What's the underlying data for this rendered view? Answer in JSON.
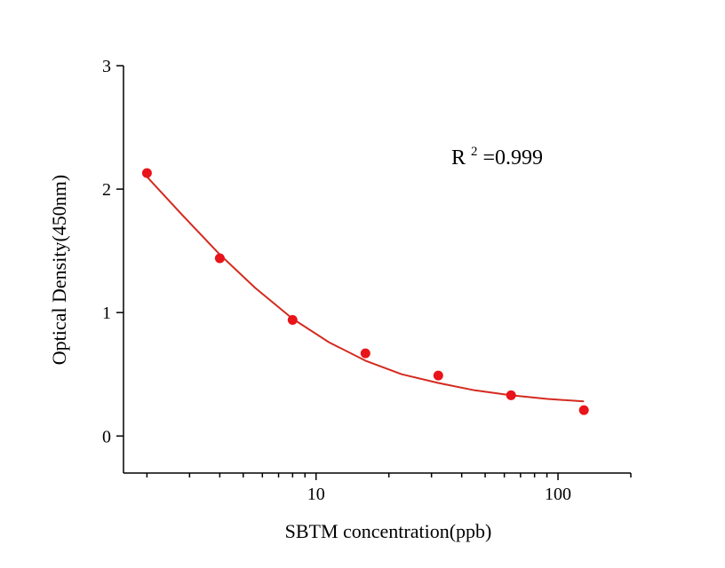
{
  "chart_data": {
    "type": "scatter",
    "xlabel": "SBTM concentration(ppb)",
    "ylabel": "Optical Density(450nm)",
    "xscale": "log",
    "xlim": [
      1.6,
      200
    ],
    "ylim": [
      -0.3,
      3
    ],
    "xticks": [
      10,
      100
    ],
    "yticks": [
      0,
      1,
      2,
      3
    ],
    "annotation": {
      "base": "R",
      "sup": "2",
      "text": "=0.999"
    },
    "grid": false,
    "colors": {
      "points": "#e8141a",
      "fit": "#d42a1f"
    },
    "series": [
      {
        "type": "scatter",
        "x": [
          2,
          4,
          8,
          16,
          32,
          64,
          128
        ],
        "y": [
          2.13,
          1.44,
          0.94,
          0.67,
          0.49,
          0.33,
          0.21
        ]
      },
      {
        "type": "line",
        "fit": "4PL",
        "x": [
          2,
          2.8,
          4,
          5.6,
          8,
          11.3,
          16,
          22.6,
          32,
          45.3,
          64,
          90.5,
          128
        ],
        "y": [
          2.1,
          1.79,
          1.47,
          1.2,
          0.95,
          0.76,
          0.61,
          0.5,
          0.43,
          0.37,
          0.33,
          0.3,
          0.28
        ]
      }
    ]
  }
}
